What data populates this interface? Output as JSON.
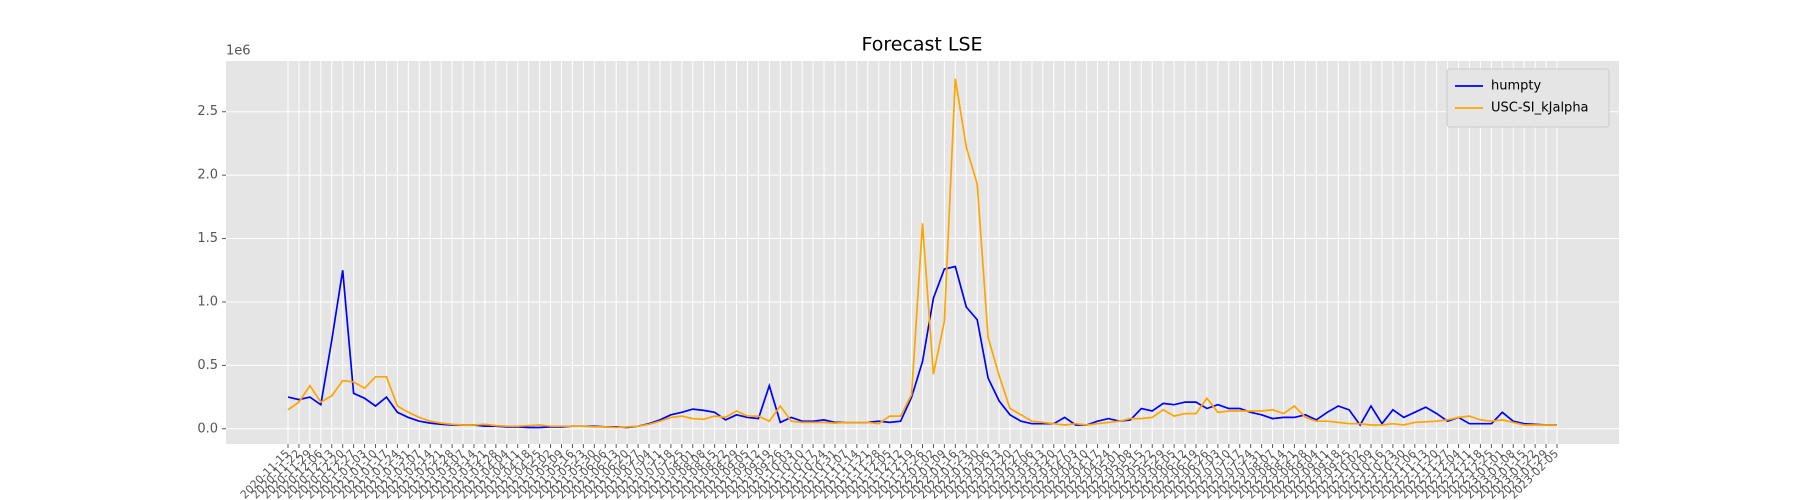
{
  "chart_data": {
    "type": "line",
    "title": "Forecast LSE",
    "y_offset_label": "1e6",
    "categories": [
      "2020-11-15",
      "2020-11-22",
      "2020-11-29",
      "2020-12-06",
      "2020-12-13",
      "2020-12-20",
      "2020-12-27",
      "2021-01-03",
      "2021-01-10",
      "2021-01-17",
      "2021-01-24",
      "2021-01-31",
      "2021-02-07",
      "2021-02-14",
      "2021-02-21",
      "2021-02-28",
      "2021-03-07",
      "2021-03-14",
      "2021-03-21",
      "2021-03-28",
      "2021-04-04",
      "2021-04-11",
      "2021-04-18",
      "2021-04-25",
      "2021-05-02",
      "2021-05-09",
      "2021-05-16",
      "2021-05-23",
      "2021-05-30",
      "2021-06-06",
      "2021-06-13",
      "2021-06-20",
      "2021-06-27",
      "2021-07-04",
      "2021-07-11",
      "2021-07-18",
      "2021-07-25",
      "2021-08-01",
      "2021-08-08",
      "2021-08-15",
      "2021-08-22",
      "2021-08-29",
      "2021-09-05",
      "2021-09-12",
      "2021-09-19",
      "2021-09-26",
      "2021-10-03",
      "2021-10-10",
      "2021-10-17",
      "2021-10-24",
      "2021-10-31",
      "2021-11-07",
      "2021-11-14",
      "2021-11-21",
      "2021-11-28",
      "2021-12-05",
      "2021-12-12",
      "2021-12-19",
      "2021-12-26",
      "2022-01-02",
      "2022-01-09",
      "2022-01-16",
      "2022-01-23",
      "2022-01-30",
      "2022-02-06",
      "2022-02-13",
      "2022-02-20",
      "2022-02-27",
      "2022-03-06",
      "2022-03-13",
      "2022-03-20",
      "2022-03-27",
      "2022-04-03",
      "2022-04-10",
      "2022-04-17",
      "2022-04-24",
      "2022-05-01",
      "2022-05-08",
      "2022-05-15",
      "2022-05-22",
      "2022-05-29",
      "2022-06-05",
      "2022-06-12",
      "2022-06-19",
      "2022-06-26",
      "2022-07-03",
      "2022-07-10",
      "2022-07-17",
      "2022-07-24",
      "2022-07-31",
      "2022-08-07",
      "2022-08-14",
      "2022-08-21",
      "2022-08-28",
      "2022-09-04",
      "2022-09-11",
      "2022-09-18",
      "2022-09-25",
      "2022-10-02",
      "2022-10-09",
      "2022-10-16",
      "2022-10-23",
      "2022-10-30",
      "2022-11-06",
      "2022-11-13",
      "2022-11-20",
      "2022-11-27",
      "2022-12-04",
      "2022-12-11",
      "2022-12-18",
      "2022-12-25",
      "2023-01-01",
      "2023-01-08",
      "2023-01-15",
      "2023-01-22",
      "2023-01-29",
      "2023-02-05"
    ],
    "series": [
      {
        "name": "humpty",
        "color": "#0000ff",
        "values": [
          0.25,
          0.23,
          0.25,
          0.19,
          0.7,
          1.25,
          0.28,
          0.24,
          0.18,
          0.25,
          0.13,
          0.09,
          0.06,
          0.045,
          0.035,
          0.03,
          0.03,
          0.03,
          0.02,
          0.02,
          0.015,
          0.015,
          0.01,
          0.01,
          0.015,
          0.015,
          0.02,
          0.02,
          0.02,
          0.015,
          0.015,
          0.01,
          0.02,
          0.04,
          0.07,
          0.11,
          0.13,
          0.155,
          0.145,
          0.13,
          0.07,
          0.11,
          0.09,
          0.08,
          0.34,
          0.05,
          0.09,
          0.06,
          0.06,
          0.07,
          0.05,
          0.05,
          0.05,
          0.05,
          0.06,
          0.05,
          0.06,
          0.25,
          0.53,
          1.03,
          1.26,
          1.28,
          0.96,
          0.86,
          0.4,
          0.22,
          0.11,
          0.06,
          0.04,
          0.04,
          0.04,
          0.09,
          0.03,
          0.03,
          0.06,
          0.08,
          0.06,
          0.07,
          0.16,
          0.14,
          0.2,
          0.19,
          0.21,
          0.21,
          0.16,
          0.19,
          0.16,
          0.16,
          0.13,
          0.11,
          0.08,
          0.09,
          0.09,
          0.11,
          0.07,
          0.13,
          0.18,
          0.15,
          0.03,
          0.18,
          0.04,
          0.15,
          0.09,
          0.13,
          0.17,
          0.12,
          0.06,
          0.09,
          0.04,
          0.04,
          0.04,
          0.13,
          0.06,
          0.04,
          0.035,
          0.03,
          0.03
        ]
      },
      {
        "name": "USC-SI_kJalpha",
        "color": "#ffa500",
        "values": [
          0.15,
          0.21,
          0.34,
          0.21,
          0.26,
          0.38,
          0.37,
          0.32,
          0.41,
          0.41,
          0.18,
          0.13,
          0.09,
          0.06,
          0.045,
          0.035,
          0.03,
          0.03,
          0.035,
          0.025,
          0.02,
          0.02,
          0.025,
          0.03,
          0.02,
          0.02,
          0.02,
          0.02,
          0.015,
          0.015,
          0.01,
          0.015,
          0.02,
          0.035,
          0.06,
          0.09,
          0.1,
          0.08,
          0.075,
          0.1,
          0.09,
          0.14,
          0.1,
          0.1,
          0.06,
          0.18,
          0.06,
          0.05,
          0.05,
          0.05,
          0.045,
          0.05,
          0.05,
          0.05,
          0.04,
          0.1,
          0.1,
          0.27,
          1.62,
          0.43,
          0.85,
          2.76,
          2.22,
          1.93,
          0.72,
          0.42,
          0.16,
          0.11,
          0.06,
          0.05,
          0.04,
          0.03,
          0.04,
          0.03,
          0.04,
          0.05,
          0.06,
          0.08,
          0.08,
          0.09,
          0.15,
          0.1,
          0.12,
          0.12,
          0.24,
          0.13,
          0.14,
          0.14,
          0.14,
          0.14,
          0.15,
          0.12,
          0.18,
          0.09,
          0.06,
          0.06,
          0.05,
          0.04,
          0.04,
          0.03,
          0.03,
          0.04,
          0.03,
          0.05,
          0.055,
          0.06,
          0.07,
          0.09,
          0.1,
          0.07,
          0.06,
          0.07,
          0.05,
          0.03,
          0.03,
          0.03,
          0.03
        ]
      }
    ],
    "ylim": [
      -0.12,
      2.9
    ],
    "yticks": [
      {
        "value": 0,
        "label": "0.0"
      },
      0.5,
      {
        "value": 1,
        "label": "1.0"
      },
      1.5,
      {
        "value": 2,
        "label": "2.0"
      },
      2.5
    ],
    "grid": true,
    "legend": "upper right"
  }
}
